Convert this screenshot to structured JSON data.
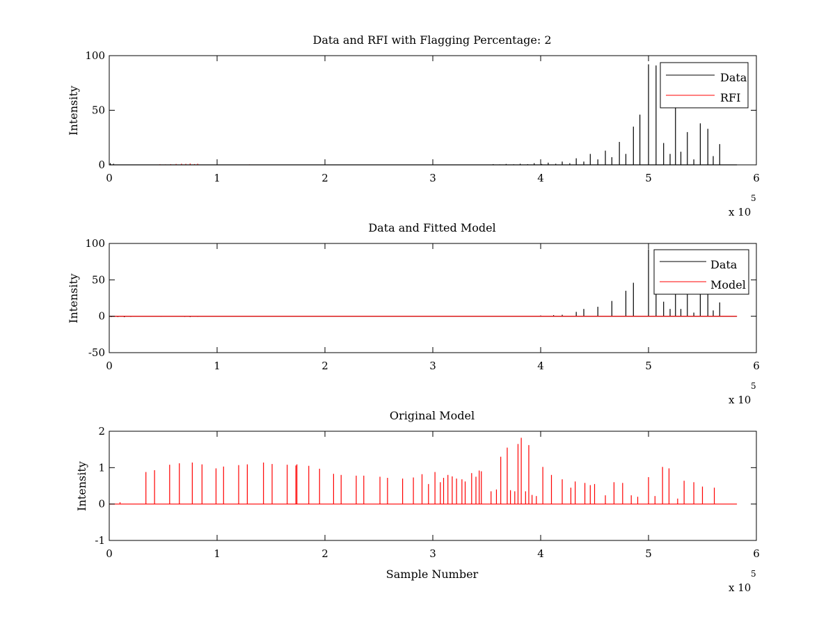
{
  "chart_data": [
    {
      "type": "line",
      "title": "Data and RFI with Flagging Percentage: 2",
      "xlabel": "",
      "ylabel": "Intensity",
      "xlim": [
        0,
        600000
      ],
      "ylim": [
        0,
        100
      ],
      "x_ticks": [
        0,
        1,
        2,
        3,
        4,
        5,
        6
      ],
      "x_tick_labels": [
        "0",
        "1",
        "2",
        "3",
        "4",
        "5",
        "6"
      ],
      "y_ticks": [
        0,
        50,
        100
      ],
      "y_tick_labels": [
        "0",
        "50",
        "100"
      ],
      "x_exponent_label": "x 10",
      "x_exponent_power": "5",
      "legend": {
        "position": "top-right",
        "entries": [
          {
            "name": "Data",
            "color": "#000000"
          },
          {
            "name": "RFI",
            "color": "#ff0000"
          }
        ]
      },
      "series": [
        {
          "name": "Data",
          "color": "#000000",
          "baseline": 0,
          "end_x": 582000,
          "x": [
            1000,
            4000,
            356000,
            362000,
            368000,
            375000,
            381000,
            388000,
            394000,
            401000,
            407000,
            414000,
            420000,
            427000,
            433000,
            440000,
            446000,
            453000,
            460000,
            466000,
            473000,
            479000,
            486000,
            492000,
            500000,
            507000,
            514000,
            520000,
            525000,
            530000,
            536000,
            542000,
            548000,
            555000,
            560000,
            566000
          ],
          "values": [
            1.5,
            1.0,
            0.6,
            0.4,
            0.8,
            0.5,
            1.0,
            0.6,
            1.5,
            0.8,
            2.0,
            1.0,
            3.0,
            1.5,
            6.0,
            3.0,
            10.0,
            5.0,
            13.0,
            7.0,
            21.0,
            10.0,
            35.0,
            46.0,
            92.0,
            91.0,
            20.0,
            10.0,
            91.0,
            12.0,
            30.0,
            5.0,
            38.0,
            33.0,
            8.0,
            19.0
          ]
        },
        {
          "name": "RFI",
          "color": "#ff0000",
          "baseline": 0,
          "x": [
            47000,
            52000,
            57000,
            62000,
            67000,
            71000,
            75000,
            79000,
            82000,
            130000
          ],
          "values": [
            0.5,
            0.4,
            0.6,
            0.8,
            1.0,
            0.9,
            1.2,
            0.7,
            1.0,
            0.4
          ]
        }
      ]
    },
    {
      "type": "line",
      "title": "Data and Fitted Model",
      "xlabel": "",
      "ylabel": "Intensity",
      "xlim": [
        0,
        600000
      ],
      "ylim": [
        -50,
        100
      ],
      "x_ticks": [
        0,
        1,
        2,
        3,
        4,
        5,
        6
      ],
      "x_tick_labels": [
        "0",
        "1",
        "2",
        "3",
        "4",
        "5",
        "6"
      ],
      "y_ticks": [
        -50,
        0,
        50,
        100
      ],
      "y_tick_labels": [
        "-50",
        "0",
        "50",
        "100"
      ],
      "x_exponent_label": "x 10",
      "x_exponent_power": "5",
      "legend": {
        "position": "top-right",
        "entries": [
          {
            "name": "Data",
            "color": "#000000"
          },
          {
            "name": "Model",
            "color": "#ff0000"
          }
        ]
      },
      "series": [
        {
          "name": "Data",
          "color": "#000000",
          "baseline": 0,
          "end_x": 582000,
          "x": [
            2000,
            8000,
            14000,
            20000,
            48000,
            70000,
            75000,
            82000,
            400000,
            412000,
            420000,
            433000,
            440000,
            453000,
            466000,
            479000,
            486000,
            500000,
            507000,
            514000,
            520000,
            525000,
            530000,
            536000,
            542000,
            548000,
            555000,
            560000,
            566000
          ],
          "values": [
            -1.0,
            -1.0,
            -1.2,
            -0.8,
            -0.5,
            -0.8,
            -1.0,
            -0.6,
            1.0,
            1.5,
            2.0,
            6.0,
            10.0,
            13.0,
            21.0,
            35.0,
            46.0,
            92.0,
            91.0,
            20.0,
            10.0,
            91.0,
            10.0,
            30.0,
            5.0,
            38.0,
            33.0,
            8.0,
            19.0
          ]
        },
        {
          "name": "Model",
          "color": "#ff0000",
          "baseline": 0,
          "end_x": 582000,
          "x": [],
          "values": []
        }
      ]
    },
    {
      "type": "line",
      "title": "Original Model",
      "xlabel": "Sample Number",
      "ylabel": "Intensity",
      "xlim": [
        0,
        600000
      ],
      "ylim": [
        -1,
        2
      ],
      "x_ticks": [
        0,
        1,
        2,
        3,
        4,
        5,
        6
      ],
      "x_tick_labels": [
        "0",
        "1",
        "2",
        "3",
        "4",
        "5",
        "6"
      ],
      "y_ticks": [
        -1,
        0,
        1,
        2
      ],
      "y_tick_labels": [
        "-1",
        "0",
        "1",
        "2"
      ],
      "x_exponent_label": "x 10",
      "x_exponent_power": "5",
      "legend": null,
      "series": [
        {
          "name": "Original Model",
          "color": "#ff0000",
          "baseline": 0,
          "end_x": 582000,
          "x": [
            10000,
            34000,
            42000,
            56000,
            65000,
            77000,
            86000,
            99000,
            106000,
            120000,
            128000,
            143000,
            151000,
            165000,
            173000,
            174000,
            185000,
            195000,
            208000,
            215000,
            229000,
            236000,
            251000,
            258000,
            272000,
            282000,
            290000,
            296000,
            302000,
            307000,
            310000,
            314000,
            318000,
            322000,
            327000,
            330000,
            336000,
            340000,
            343000,
            345000,
            354000,
            359000,
            363000,
            369000,
            372000,
            376000,
            379000,
            382000,
            386000,
            389000,
            392000,
            396000,
            402000,
            410000,
            420000,
            428000,
            432000,
            441000,
            446000,
            450000,
            460000,
            468000,
            476000,
            484000,
            490000,
            500000,
            506000,
            513000,
            519000,
            527000,
            533000,
            542000,
            550000,
            561000
          ],
          "values": [
            0.05,
            0.88,
            0.93,
            1.08,
            1.12,
            1.14,
            1.09,
            0.98,
            1.03,
            1.07,
            1.09,
            1.14,
            1.1,
            1.08,
            1.06,
            1.09,
            1.05,
            0.97,
            0.83,
            0.8,
            0.78,
            0.78,
            0.75,
            0.72,
            0.7,
            0.73,
            0.82,
            0.55,
            0.88,
            0.6,
            0.72,
            0.8,
            0.76,
            0.7,
            0.68,
            0.62,
            0.85,
            0.75,
            0.92,
            0.9,
            0.35,
            0.4,
            1.3,
            1.55,
            0.38,
            0.35,
            1.65,
            1.82,
            0.35,
            1.62,
            0.25,
            0.22,
            1.02,
            0.8,
            0.68,
            0.45,
            0.62,
            0.58,
            0.52,
            0.55,
            0.24,
            0.6,
            0.58,
            0.24,
            0.2,
            0.74,
            0.22,
            1.02,
            0.98,
            0.15,
            0.64,
            0.6,
            0.48,
            0.45
          ]
        }
      ]
    }
  ]
}
